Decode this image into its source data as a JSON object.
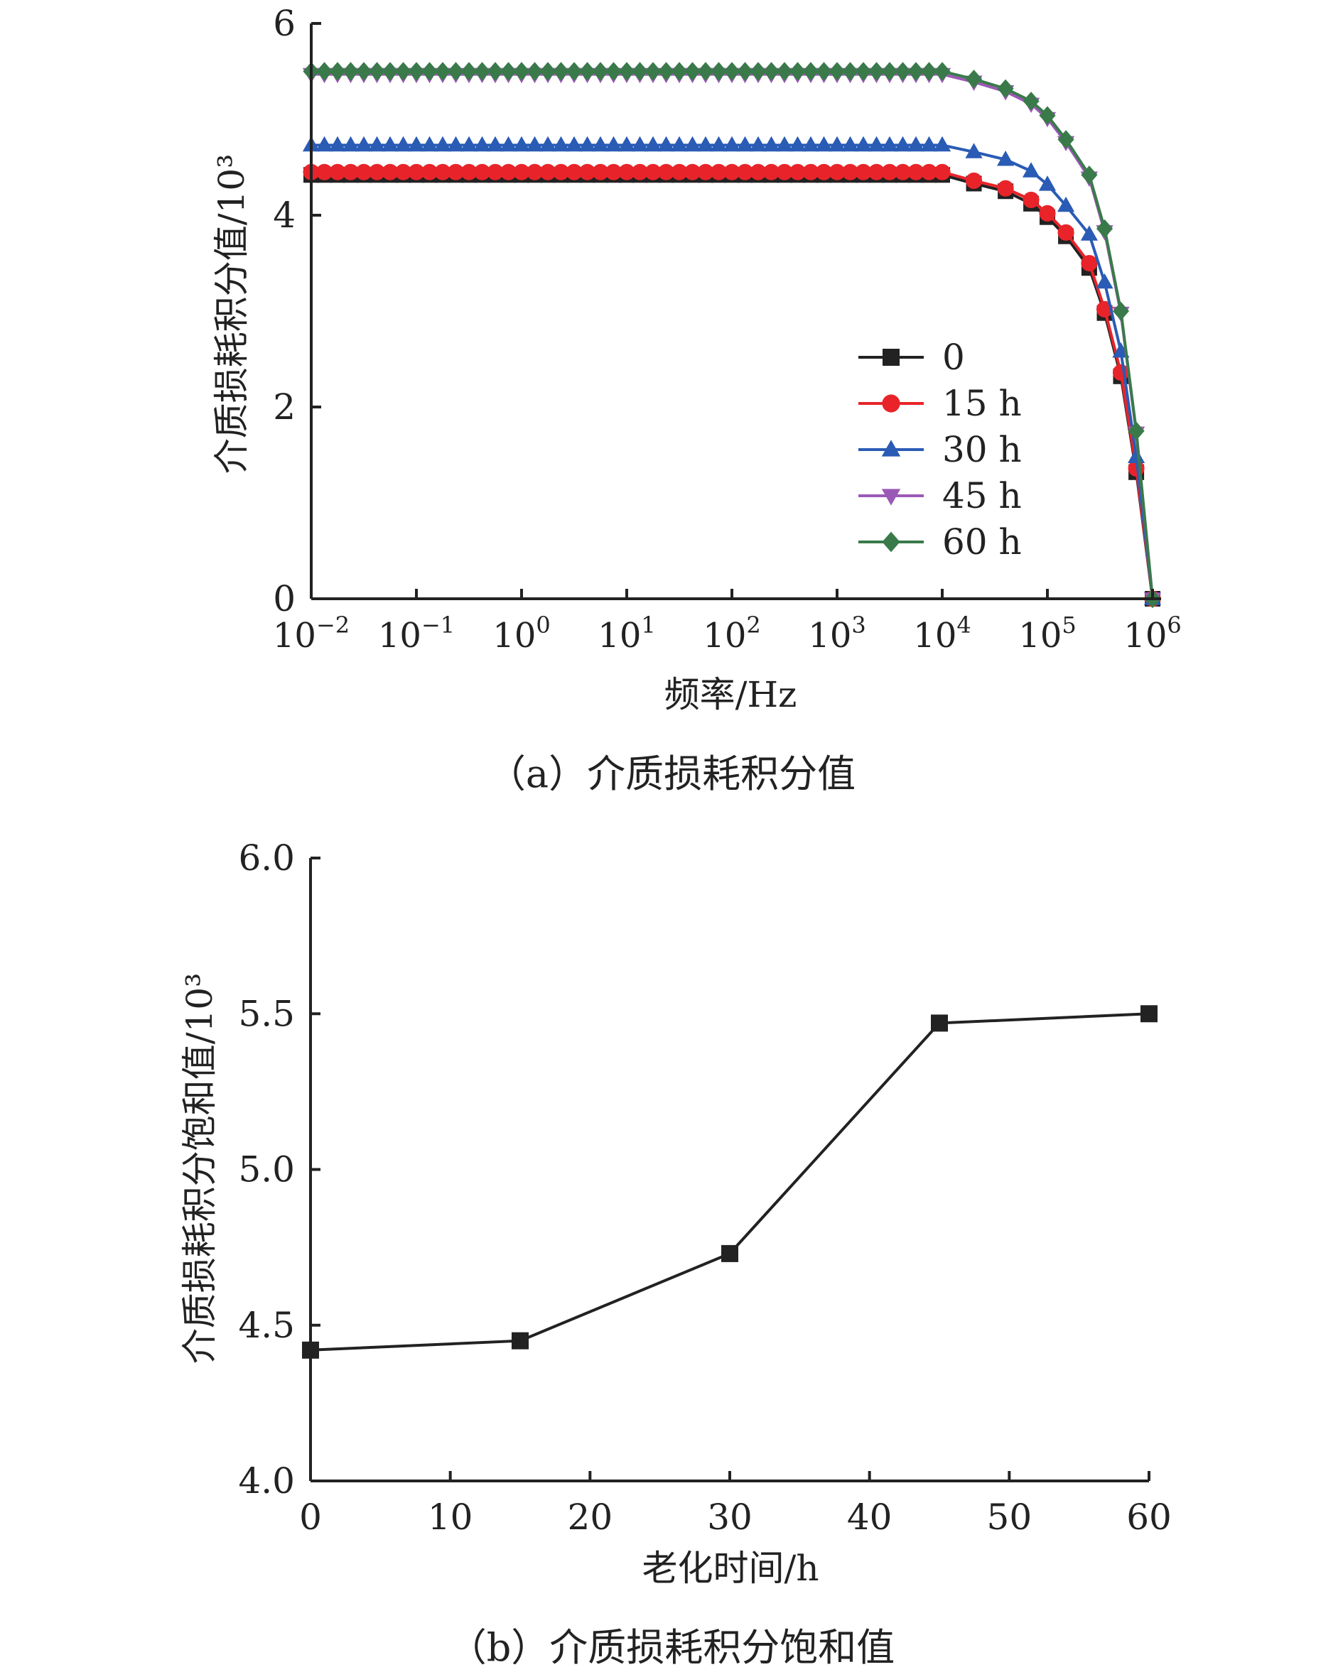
{
  "chart_data": [
    {
      "type": "line",
      "xscale": "log",
      "xlim": [
        0.01,
        1000000
      ],
      "ylim": [
        0,
        6
      ],
      "xlabel": "频率/Hz",
      "ylabel": "介质损耗积分值/10³",
      "caption": "（a）介质损耗积分值",
      "xtick_labels": [
        {
          "base": "10",
          "exp": "−2",
          "value": 0.01
        },
        {
          "base": "10",
          "exp": "−1",
          "value": 0.1
        },
        {
          "base": "10",
          "exp": "0",
          "value": 1
        },
        {
          "base": "10",
          "exp": "1",
          "value": 10
        },
        {
          "base": "10",
          "exp": "2",
          "value": 100
        },
        {
          "base": "10",
          "exp": "3",
          "value": 1000
        },
        {
          "base": "10",
          "exp": "4",
          "value": 10000
        },
        {
          "base": "10",
          "exp": "5",
          "value": 100000
        },
        {
          "base": "10",
          "exp": "6",
          "value": 1000000
        }
      ],
      "yticks": [
        "0",
        "2",
        "4",
        "6"
      ],
      "legend_position": "center-right",
      "series": [
        {
          "name": "0",
          "color": "#222222",
          "marker": "square",
          "plateau": 4.42,
          "tail_freq": [
            10000,
            20000,
            40000,
            70000,
            100000,
            150000,
            250000,
            350000,
            500000,
            700000,
            1000000
          ],
          "tail_values": [
            4.37,
            4.33,
            4.25,
            4.12,
            3.98,
            3.78,
            3.45,
            2.98,
            2.32,
            1.32,
            0.0
          ]
        },
        {
          "name": "15 h",
          "color": "#e8242a",
          "marker": "circle",
          "plateau": 4.45,
          "tail_freq": [
            10000,
            20000,
            40000,
            70000,
            100000,
            150000,
            250000,
            350000,
            500000,
            700000,
            1000000
          ],
          "tail_values": [
            4.4,
            4.36,
            4.28,
            4.16,
            4.02,
            3.82,
            3.5,
            3.02,
            2.36,
            1.36,
            0.0
          ]
        },
        {
          "name": "30 h",
          "color": "#2a5bb5",
          "marker": "triangle-up",
          "plateau": 4.73,
          "tail_freq": [
            10000,
            20000,
            40000,
            70000,
            100000,
            150000,
            250000,
            350000,
            500000,
            700000,
            1000000
          ],
          "tail_values": [
            4.7,
            4.66,
            4.58,
            4.46,
            4.32,
            4.1,
            3.8,
            3.3,
            2.58,
            1.48,
            0.0
          ]
        },
        {
          "name": "45 h",
          "color": "#9b59b6",
          "marker": "triangle-down",
          "plateau": 5.47,
          "tail_freq": [
            10000,
            20000,
            40000,
            70000,
            100000,
            150000,
            250000,
            350000,
            500000,
            700000,
            1000000
          ],
          "tail_values": [
            5.43,
            5.39,
            5.29,
            5.16,
            5.01,
            4.76,
            4.39,
            3.83,
            2.98,
            1.73,
            0.0
          ]
        },
        {
          "name": "60 h",
          "color": "#3a7a4a",
          "marker": "diamond",
          "plateau": 5.5,
          "tail_freq": [
            10000,
            20000,
            40000,
            70000,
            100000,
            150000,
            250000,
            350000,
            500000,
            700000,
            1000000
          ],
          "tail_values": [
            5.46,
            5.42,
            5.32,
            5.19,
            5.04,
            4.79,
            4.42,
            3.86,
            3.0,
            1.75,
            0.0
          ]
        }
      ]
    },
    {
      "type": "line",
      "xlim": [
        0,
        60
      ],
      "ylim": [
        4.0,
        6.0
      ],
      "xlabel": "老化时间/h",
      "ylabel": "介质损耗积分饱和值/10³",
      "caption": "（b）介质损耗积分饱和值",
      "xticks": [
        "0",
        "10",
        "20",
        "30",
        "40",
        "50",
        "60"
      ],
      "yticks": [
        "4.0",
        "4.5",
        "5.0",
        "5.5",
        "6.0"
      ],
      "series": [
        {
          "color": "#222222",
          "marker": "square",
          "x": [
            0,
            15,
            30,
            45,
            60
          ],
          "y": [
            4.42,
            4.45,
            4.73,
            5.47,
            5.5
          ]
        }
      ]
    }
  ]
}
